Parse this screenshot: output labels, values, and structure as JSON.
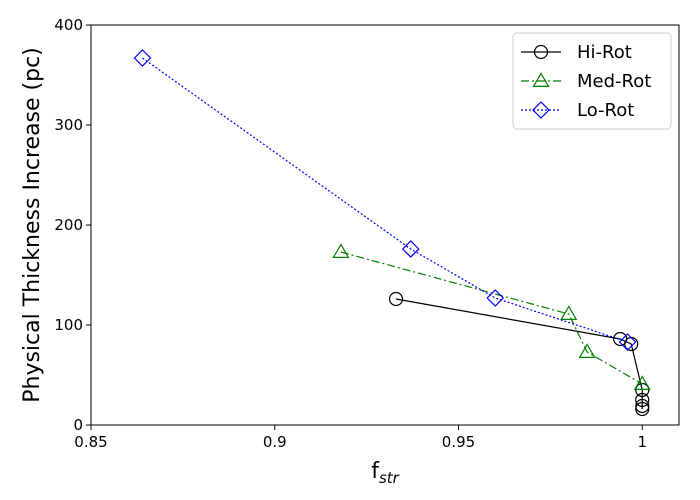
{
  "chart_data": {
    "type": "line",
    "title": "",
    "xlabel": "f",
    "xlabel_sub": "str",
    "ylabel": "Physical Thickness Increase (pc)",
    "xlim": [
      0.85,
      1.01
    ],
    "ylim": [
      0,
      400
    ],
    "xticks": [
      0.85,
      0.9,
      0.95,
      1.0
    ],
    "xtick_labels": [
      "0.85",
      "0.9",
      "0.95",
      "1"
    ],
    "yticks": [
      0,
      100,
      200,
      300,
      400
    ],
    "ytick_labels": [
      "0",
      "100",
      "200",
      "300",
      "400"
    ],
    "grid": false,
    "legend_position": "top-right",
    "series": [
      {
        "name": "Hi-Rot",
        "color": "#000000",
        "marker": "circle",
        "line_style": "solid",
        "x": [
          0.933,
          0.994,
          0.997,
          1.0,
          1.0,
          1.0,
          1.0
        ],
        "y": [
          126,
          86,
          81,
          35,
          25,
          19,
          16
        ]
      },
      {
        "name": "Med-Rot",
        "color": "#008000",
        "marker": "triangle",
        "line_style": "dashdot",
        "x": [
          0.918,
          0.98,
          0.985,
          1.0
        ],
        "y": [
          173,
          111,
          73,
          41
        ]
      },
      {
        "name": "Lo-Rot",
        "color": "#0000ff",
        "marker": "diamond",
        "line_style": "dotted",
        "x": [
          0.864,
          0.937,
          0.96,
          0.996
        ],
        "y": [
          367,
          176,
          127,
          83
        ]
      }
    ]
  }
}
